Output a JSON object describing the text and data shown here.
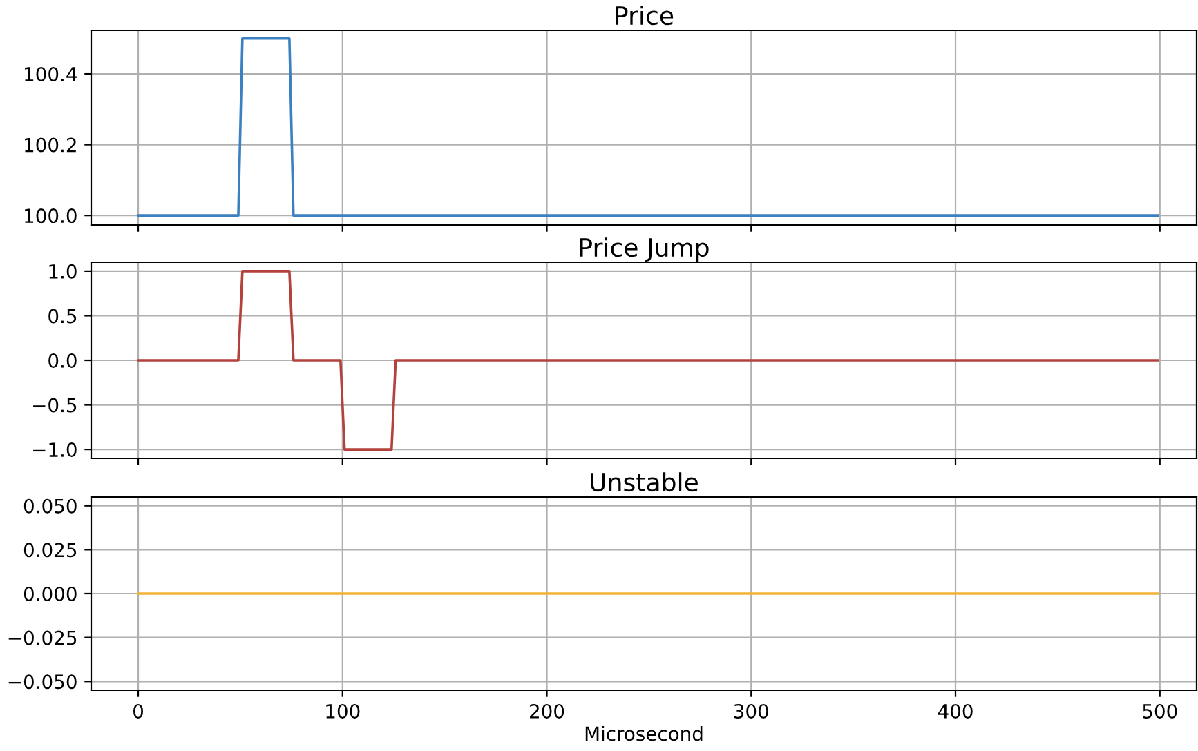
{
  "chart_data": [
    {
      "type": "line",
      "title": "Price",
      "x": [
        0,
        49,
        51,
        74,
        76,
        499
      ],
      "series": [
        {
          "color": "#3b80c0",
          "values": [
            100.0,
            100.0,
            100.5,
            100.5,
            100.0,
            100.0
          ]
        }
      ],
      "xlim": [
        -23,
        518
      ],
      "xticks": [
        0,
        100,
        200,
        300,
        400,
        500
      ],
      "ylim": [
        99.973,
        100.523
      ],
      "yticks": [
        {
          "value": 100.0,
          "label": "100.0"
        },
        {
          "value": 100.2,
          "label": "100.2"
        },
        {
          "value": 100.4,
          "label": "100.4"
        }
      ],
      "grid": true,
      "tick_labels": "y"
    },
    {
      "type": "line",
      "title": "Price Jump",
      "x": [
        0,
        49,
        51,
        74,
        76,
        99,
        101,
        124,
        126,
        499
      ],
      "series": [
        {
          "color": "#b3423c",
          "values": [
            0,
            0,
            1,
            1,
            0,
            0,
            -1,
            -1,
            0,
            0
          ]
        }
      ],
      "xlim": [
        -23,
        518
      ],
      "xticks": [
        0,
        100,
        200,
        300,
        400,
        500
      ],
      "ylim": [
        -1.1,
        1.1
      ],
      "yticks": [
        {
          "value": -1.0,
          "label": "−1.0"
        },
        {
          "value": -0.5,
          "label": "−0.5"
        },
        {
          "value": 0.0,
          "label": "0.0"
        },
        {
          "value": 0.5,
          "label": "0.5"
        },
        {
          "value": 1.0,
          "label": "1.0"
        }
      ],
      "grid": true,
      "tick_labels": "y"
    },
    {
      "type": "line",
      "title": "Unstable",
      "xlabel": "Microsecond",
      "x": [
        0,
        499
      ],
      "series": [
        {
          "color": "#f2b233",
          "values": [
            0,
            0
          ]
        }
      ],
      "xlim": [
        -23,
        518
      ],
      "xticks": [
        0,
        100,
        200,
        300,
        400,
        500
      ],
      "ylim": [
        -0.055,
        0.055
      ],
      "yticks": [
        {
          "value": -0.05,
          "label": "−0.050"
        },
        {
          "value": -0.025,
          "label": "−0.025"
        },
        {
          "value": 0.0,
          "label": "0.000"
        },
        {
          "value": 0.025,
          "label": "0.025"
        },
        {
          "value": 0.05,
          "label": "0.050"
        }
      ],
      "grid": true
    }
  ]
}
